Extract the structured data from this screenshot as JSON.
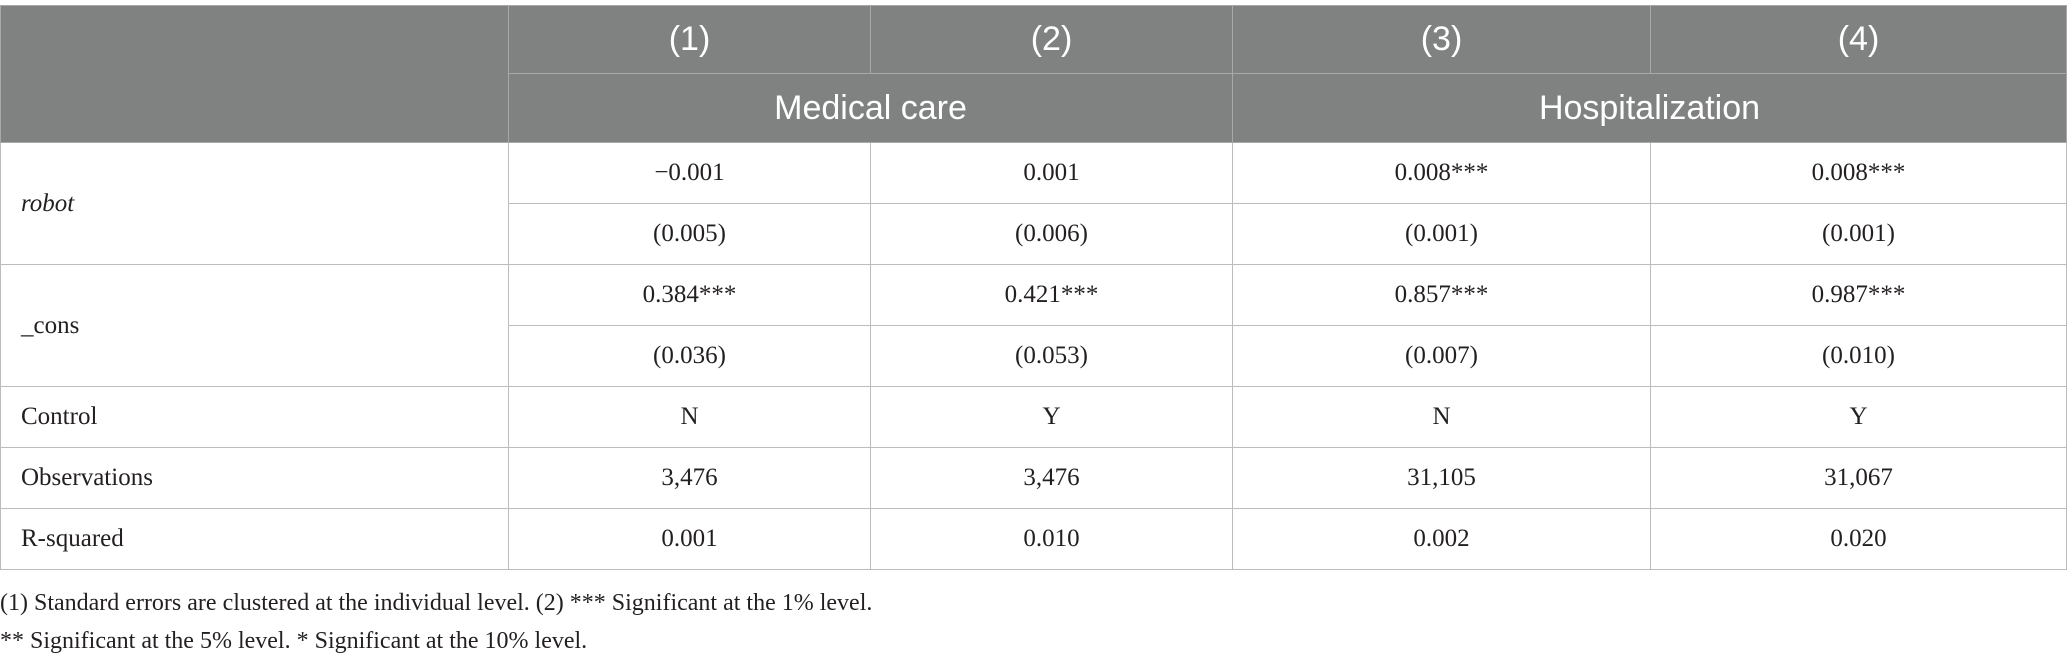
{
  "header": {
    "columns": [
      "(1)",
      "(2)",
      "(3)",
      "(4)"
    ],
    "groups": [
      "Medical care",
      "Hospitalization"
    ]
  },
  "rows": {
    "robot": {
      "label": "robot",
      "coef": [
        "−0.001",
        "0.001",
        "0.008***",
        "0.008***"
      ],
      "se": [
        "(0.005)",
        "(0.006)",
        "(0.001)",
        "(0.001)"
      ]
    },
    "cons": {
      "label": "_cons",
      "coef": [
        "0.384***",
        "0.421***",
        "0.857***",
        "0.987***"
      ],
      "se": [
        "(0.036)",
        "(0.053)",
        "(0.007)",
        "(0.010)"
      ]
    },
    "control": {
      "label": "Control",
      "values": [
        "N",
        "Y",
        "N",
        "Y"
      ]
    },
    "observations": {
      "label": "Observations",
      "values": [
        "3,476",
        "3,476",
        "31,105",
        "31,067"
      ]
    },
    "r_squared": {
      "label": "R-squared",
      "values": [
        "0.001",
        "0.010",
        "0.002",
        "0.020"
      ]
    }
  },
  "notes": [
    "(1) Standard errors are clustered at the individual level. (2) *** Significant at the 1% level.",
    "** Significant at the 5% level. * Significant at the 10% level."
  ]
}
